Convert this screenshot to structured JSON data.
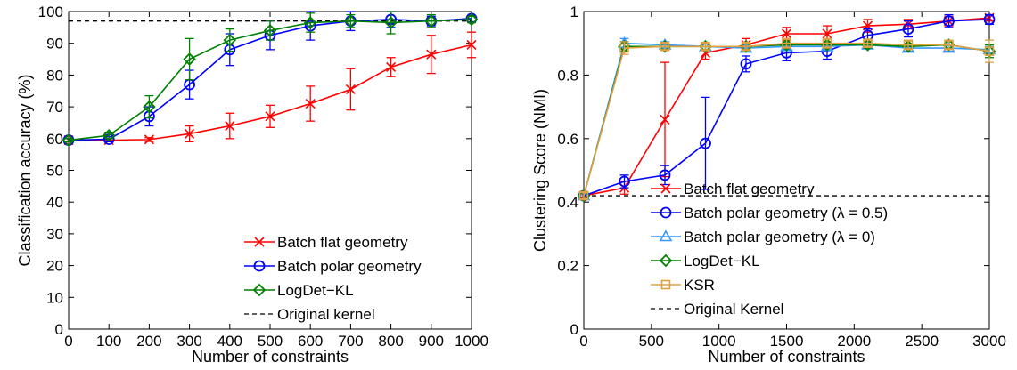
{
  "chart_data": [
    {
      "type": "line",
      "title": "",
      "xlabel": "Number of constraints",
      "ylabel": "Classification accuracy (%)",
      "xlim": [
        0,
        1000
      ],
      "ylim": [
        0,
        100
      ],
      "xticks": [
        0,
        100,
        200,
        300,
        400,
        500,
        600,
        700,
        800,
        900,
        1000
      ],
      "yticks": [
        0,
        10,
        20,
        30,
        40,
        50,
        60,
        70,
        80,
        90,
        100
      ],
      "xtick_labels": [
        "0",
        "100",
        "200",
        "300",
        "400",
        "500",
        "600",
        "700",
        "800",
        "900",
        "1000"
      ],
      "ytick_labels": [
        "0",
        "10",
        "20",
        "30",
        "40",
        "50",
        "60",
        "70",
        "80",
        "90",
        "100"
      ],
      "grid": false,
      "legend_position": "bottom-right",
      "x": [
        0,
        100,
        200,
        300,
        400,
        500,
        600,
        700,
        800,
        900,
        1000
      ],
      "series": [
        {
          "name": "Batch flat geometry",
          "color": "#ff0000",
          "marker": "x",
          "values": [
            59.5,
            59.5,
            59.7,
            61.5,
            64,
            67,
            71,
            75.5,
            82.5,
            86.5,
            89.5
          ],
          "errors": [
            0.5,
            0.5,
            0.6,
            2.5,
            4,
            3.5,
            5.5,
            6.5,
            3,
            6,
            4
          ]
        },
        {
          "name": "Batch polar geometry",
          "color": "#0000ff",
          "marker": "o",
          "values": [
            59.5,
            59.8,
            67,
            77,
            88,
            92.5,
            95.5,
            97,
            97.5,
            97,
            97.8
          ],
          "errors": [
            0.5,
            0.8,
            3,
            4.5,
            5,
            4.5,
            4.5,
            3,
            2.5,
            1.5,
            1
          ]
        },
        {
          "name": "LogDet−KL",
          "color": "#008000",
          "marker": "diamond",
          "values": [
            59.5,
            61,
            70,
            85,
            91,
            94,
            96.5,
            97,
            96.5,
            97,
            97.5
          ],
          "errors": [
            0.5,
            1,
            3.5,
            6.5,
            3.5,
            3,
            3,
            2,
            3.5,
            2,
            1
          ]
        }
      ],
      "reference_lines": [
        {
          "name": "Original kernel",
          "y": 97,
          "color": "#000000",
          "style": "dashed"
        }
      ]
    },
    {
      "type": "line",
      "title": "",
      "xlabel": "Number of constraints",
      "ylabel": "Clustering Score (NMI)",
      "xlim": [
        0,
        3000
      ],
      "ylim": [
        0,
        1
      ],
      "xticks": [
        0,
        500,
        1000,
        1500,
        2000,
        2500,
        3000
      ],
      "yticks": [
        0,
        0.2,
        0.4,
        0.6,
        0.8,
        1
      ],
      "xtick_labels": [
        "0",
        "500",
        "1000",
        "1500",
        "2000",
        "2500",
        "3000"
      ],
      "ytick_labels": [
        "0",
        "0.2",
        "0.4",
        "0.6",
        "0.8",
        "1"
      ],
      "grid": false,
      "legend_position": "bottom-right",
      "x": [
        0,
        300,
        600,
        900,
        1200,
        1500,
        1800,
        2100,
        2400,
        2700,
        3000
      ],
      "series": [
        {
          "name": "Batch flat geometry",
          "color": "#ff0000",
          "marker": "x",
          "values": [
            0.42,
            0.445,
            0.66,
            0.87,
            0.895,
            0.93,
            0.93,
            0.955,
            0.96,
            0.97,
            0.98
          ],
          "errors": [
            0.01,
            0.02,
            0.18,
            0.02,
            0.02,
            0.02,
            0.025,
            0.02,
            0.015,
            0.015,
            0.01
          ]
        },
        {
          "name": "Batch polar geometry (λ = 0.5)",
          "color": "#0000ff",
          "marker": "o",
          "values": [
            0.42,
            0.465,
            0.485,
            0.585,
            0.835,
            0.87,
            0.875,
            0.925,
            0.945,
            0.97,
            0.975
          ],
          "errors": [
            0.01,
            0.02,
            0.03,
            0.145,
            0.025,
            0.025,
            0.025,
            0.02,
            0.025,
            0.02,
            0.015
          ]
        },
        {
          "name": "Batch polar geometry (λ = 0)",
          "color": "#3399ff",
          "marker": "triangle",
          "values": [
            0.42,
            0.9,
            0.895,
            0.89,
            0.885,
            0.89,
            0.89,
            0.895,
            0.885,
            0.885,
            0.88
          ],
          "errors": [
            0.01,
            0.015,
            0.01,
            0.01,
            0.01,
            0.01,
            0.01,
            0.01,
            0.01,
            0.01,
            0.01
          ]
        },
        {
          "name": "LogDet−KL",
          "color": "#008000",
          "marker": "diamond",
          "values": [
            0.42,
            0.89,
            0.89,
            0.89,
            0.89,
            0.895,
            0.895,
            0.895,
            0.89,
            0.895,
            0.875
          ],
          "errors": [
            0.01,
            0.015,
            0.01,
            0.01,
            0.01,
            0.01,
            0.01,
            0.01,
            0.01,
            0.01,
            0.02
          ]
        },
        {
          "name": "KSR",
          "color": "#e0a040",
          "marker": "square",
          "values": [
            0.42,
            0.885,
            0.89,
            0.89,
            0.89,
            0.9,
            0.9,
            0.9,
            0.895,
            0.895,
            0.875
          ],
          "errors": [
            0.01,
            0.02,
            0.01,
            0.01,
            0.01,
            0.015,
            0.015,
            0.01,
            0.015,
            0.015,
            0.035
          ]
        }
      ],
      "reference_lines": [
        {
          "name": "Original Kernel",
          "y": 0.42,
          "color": "#000000",
          "style": "dashed"
        }
      ]
    }
  ]
}
